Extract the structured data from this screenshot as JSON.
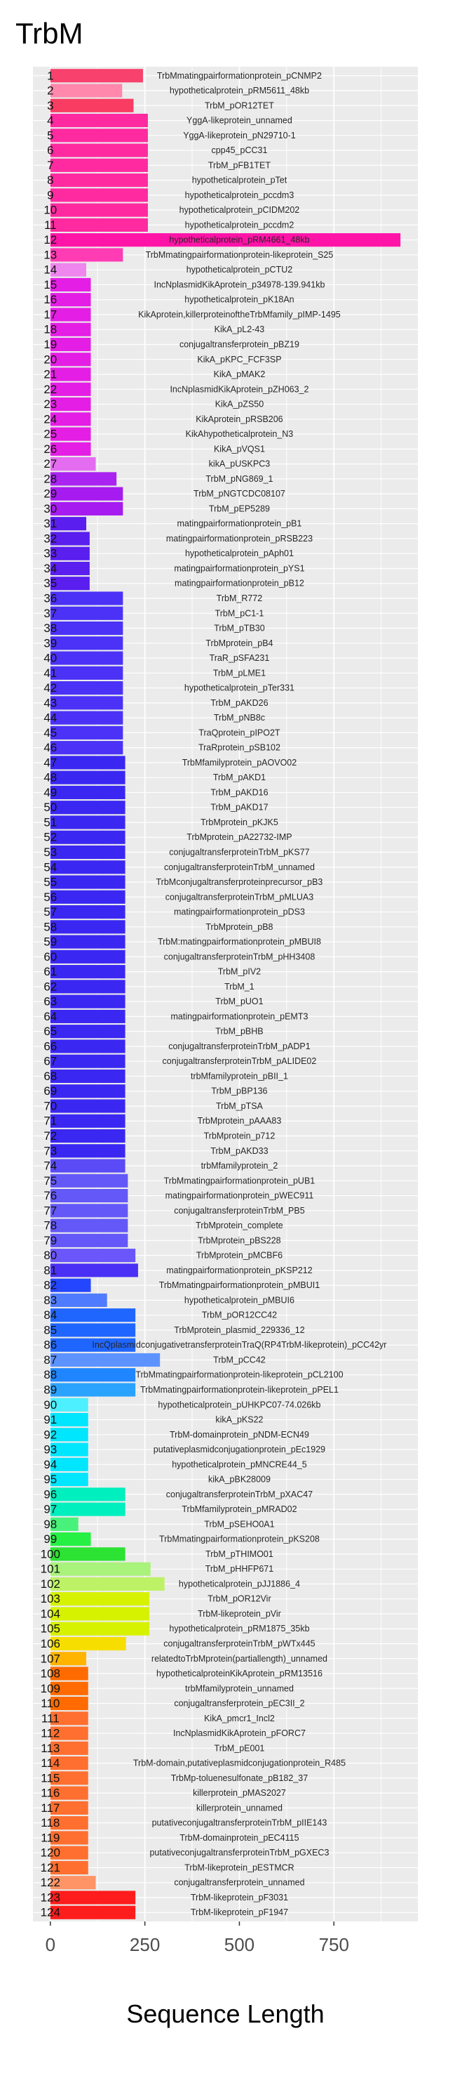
{
  "chart_data": {
    "type": "bar",
    "orientation": "horizontal",
    "title": "TrbM",
    "xlabel": "Sequence Length",
    "xlim": [
      -46,
      972
    ],
    "xticks": [
      0,
      250,
      500,
      750
    ],
    "grid": true,
    "legend": "none",
    "label_position_x": 500,
    "categories": [
      "1",
      "2",
      "3",
      "4",
      "5",
      "6",
      "7",
      "8",
      "9",
      "10",
      "11",
      "12",
      "13",
      "14",
      "15",
      "16",
      "17",
      "18",
      "19",
      "20",
      "21",
      "22",
      "23",
      "24",
      "25",
      "26",
      "27",
      "28",
      "29",
      "30",
      "31",
      "32",
      "33",
      "34",
      "35",
      "36",
      "37",
      "38",
      "39",
      "40",
      "41",
      "42",
      "43",
      "44",
      "45",
      "46",
      "47",
      "48",
      "49",
      "50",
      "51",
      "52",
      "53",
      "54",
      "55",
      "56",
      "57",
      "58",
      "59",
      "60",
      "61",
      "62",
      "63",
      "64",
      "65",
      "66",
      "67",
      "68",
      "69",
      "70",
      "71",
      "72",
      "73",
      "74",
      "75",
      "76",
      "77",
      "78",
      "79",
      "80",
      "81",
      "82",
      "83",
      "84",
      "85",
      "86",
      "87",
      "88",
      "89",
      "90",
      "91",
      "92",
      "93",
      "94",
      "95",
      "96",
      "97",
      "98",
      "99",
      "100",
      "101",
      "102",
      "103",
      "104",
      "105",
      "106",
      "107",
      "108",
      "109",
      "110",
      "111",
      "112",
      "113",
      "114",
      "115",
      "116",
      "117",
      "118",
      "119",
      "120",
      "121",
      "122",
      "123",
      "124"
    ],
    "labels": [
      "TrbMmatingpairformationprotein_pCNMP2",
      "hypotheticalprotein_pRM5611_48kb",
      "TrbM_pOR12TET",
      "YggA-likeprotein_unnamed",
      "YggA-likeprotein_pN29710-1",
      "cpp45_pCC31",
      "TrbM_pFB1TET",
      "hypotheticalprotein_pTet",
      "hypotheticalprotein_pccdm3",
      "hypotheticalprotein_pCIDM202",
      "hypotheticalprotein_pccdm2",
      "hypotheticalprotein_pRM4661_48kb",
      "TrbMmatingpairformationprotein-likeprotein_S25",
      "hypotheticalprotein_pCTU2",
      "IncNplasmidKikAprotein_p34978-139.941kb",
      "hypotheticalprotein_pK18An",
      "KikAprotein,killerproteinoftheTrbMfamily_pIMP-1495",
      "KikA_pL2-43",
      "conjugaltransferprotein_pBZ19",
      "KikA_pKPC_FCF3SP",
      "KikA_pMAK2",
      "IncNplasmidKikAprotein_pZH063_2",
      "KikA_pZS50",
      "KikAprotein_pRSB206",
      "KikAhypotheticalprotein_N3",
      "KikA_pVQS1",
      "kikA_pUSKPC3",
      "TrbM_pNG869_1",
      "TrbM_pNGTCDC08107",
      "TrbM_pEP5289",
      "matingpairformationprotein_pB1",
      "matingpairformationprotein_pRSB223",
      "hypotheticalprotein_pAph01",
      "matingpairformationprotein_pYS1",
      "matingpairformationprotein_pB12",
      "TrbM_R772",
      "TrbM_pC1-1",
      "TrbM_pTB30",
      "TrbMprotein_pB4",
      "TraR_pSFA231",
      "TrbM_pLME1",
      "hypotheticalprotein_pTer331",
      "TrbM_pAKD26",
      "TrbM_pNB8c",
      "TraQprotein_pIPO2T",
      "TraRprotein_pSB102",
      "TrbMfamilyprotein_pAOVO02",
      "TrbM_pAKD1",
      "TrbM_pAKD16",
      "TrbM_pAKD17",
      "TrbMprotein_pKJK5",
      "TrbMprotein_pA22732-IMP",
      "conjugaltransferproteinTrbM_pKS77",
      "conjugaltransferproteinTrbM_unnamed",
      "TrbMconjugaltransferproteinprecursor_pB3",
      "conjugaltransferproteinTrbM_pMLUA3",
      "matingpairformationprotein_pDS3",
      "TrbMprotein_pB8",
      "TrbM:matingpairformationprotein_pMBUI8",
      "conjugaltransferproteinTrbM_pHH3408",
      "TrbM_pIV2",
      "TrbM_1",
      "TrbM_pUO1",
      "matingpairformationprotein_pEMT3",
      "TrbM_pBHB",
      "conjugaltransferproteinTrbM_pADP1",
      "conjugaltransferproteinTrbM_pALIDE02",
      "trbMfamilyprotein_pBII_1",
      "TrbM_pBP136",
      "TrbM_pTSA",
      "TrbMprotein_pAAA83",
      "TrbMprotein_p712",
      "TrbM_pAKD33",
      "trbMfamilyprotein_2",
      "TrbMmatingpairformationprotein_pUB1",
      "matingpairformationprotein_pWEC911",
      "conjugaltransferproteinTrbM_PB5",
      "TrbMprotein_complete",
      "TrbMprotein_pBS228",
      "TrbMprotein_pMCBF6",
      "matingpairformationprotein_pKSP212",
      "TrbMmatingpairformationprotein_pMBUI1",
      "hypotheticalprotein_pMBUI6",
      "TrbM_pOR12CC42",
      "TrbMprotein_plasmid_229336_12",
      "IncQplasmidconjugativetransferproteinTraQ(RP4TrbM-likeprotein)_pCC42yr",
      "TrbM_pCC42",
      "TrbMmatingpairformationprotein-likeprotein_pCL2100",
      "TrbMmatingpairformationprotein-likeprotein_pPEL1",
      "hypotheticalprotein_pUHKPC07-74.026kb",
      "kikA_pKS22",
      "TrbM-domainprotein_pNDM-ECN49",
      "putativeplasmidconjugationprotein_pEc1929",
      "hypotheticalprotein_pMNCRE44_5",
      "kikA_pBK28009",
      "conjugaltransferproteinTrbM_pXAC47",
      "TrbMfamilyprotein_pMRAD02",
      "TrbM_pSEHO0A1",
      "TrbMmatingpairformationprotein_pKS208",
      "TrbM_pTHIMO01",
      "TrbM_pHHFP671",
      "hypotheticalprotein_pJJ1886_4",
      "TrbM_pOR12Vir",
      "TrbM-likeprotein_pVir",
      "hypotheticalprotein_pRM1875_35kb",
      "conjugaltransferproteinTrbM_pWTx445",
      "relatedtoTrbMprotein(partiallength)_unnamed",
      "hypotheticalproteinKikAprotein_pRM13516",
      "trbMfamilyprotein_unnamed",
      "conjugaltransferprotein_pEC3II_2",
      "KikA_pmcr1_Incl2",
      "IncNplasmidKikAprotein_pFORC7",
      "TrbM_pE001",
      "TrbM-domain,putativeplasmidconjugationprotein_R485",
      "TrbMp-toluenesulfonate_pB182_37",
      "killerprotein_pMAS2027",
      "killerprotein_unnamed",
      "putativeconjugaltransferproteinTrbM_pIIE143",
      "TrbM-domainprotein_pEC4115",
      "putativeconjugaltransferproteinTrbM_pGXEC3",
      "TrbM-likeprotein_pESTMCR",
      "conjugaltransferprotein_unnamed",
      "TrbM-likeprotein_pF3031",
      "TrbM-likeprotein_pF1947"
    ],
    "values": [
      245,
      190,
      220,
      258,
      258,
      258,
      258,
      258,
      258,
      258,
      258,
      926,
      192,
      95,
      107,
      107,
      107,
      107,
      107,
      107,
      107,
      107,
      107,
      107,
      107,
      107,
      120,
      175,
      192,
      192,
      95,
      104,
      104,
      104,
      104,
      192,
      192,
      192,
      192,
      192,
      192,
      192,
      192,
      192,
      192,
      192,
      198,
      198,
      198,
      198,
      198,
      198,
      198,
      198,
      198,
      198,
      198,
      198,
      198,
      198,
      198,
      198,
      198,
      198,
      198,
      198,
      198,
      198,
      198,
      198,
      198,
      198,
      198,
      198,
      205,
      205,
      205,
      205,
      205,
      225,
      232,
      107,
      150,
      225,
      225,
      225,
      290,
      225,
      225,
      100,
      100,
      100,
      100,
      100,
      100,
      198,
      198,
      74,
      107,
      198,
      265,
      302,
      262,
      262,
      262,
      200,
      95,
      100,
      100,
      100,
      100,
      100,
      100,
      100,
      100,
      100,
      100,
      100,
      100,
      100,
      100,
      120,
      225,
      225
    ],
    "colors": [
      "#F8416C",
      "#FF88AC",
      "#F83C62",
      "#FF2AA0",
      "#FF2AA0",
      "#FF2AA0",
      "#FF2AA0",
      "#FF2AA0",
      "#FF2AA0",
      "#FF2AA0",
      "#FF2AA0",
      "#FF14A8",
      "#FF3CB4",
      "#EE86EE",
      "#E41EE4",
      "#E41EE4",
      "#E41EE4",
      "#E41EE4",
      "#E41EE4",
      "#E41EE4",
      "#E41EE4",
      "#E41EE4",
      "#E41EE4",
      "#E41EE4",
      "#E41EE4",
      "#E41EE4",
      "#E46CF0",
      "#A924F0",
      "#A61BEF",
      "#A61BEF",
      "#5A1EEE",
      "#5A1EEE",
      "#5A1EEE",
      "#5A1EEE",
      "#5A1EEE",
      "#4B32F6",
      "#4B32F6",
      "#4B32F6",
      "#4B32F6",
      "#4B32F6",
      "#4B32F6",
      "#4B32F6",
      "#4B32F6",
      "#4B32F6",
      "#4B32F6",
      "#4B32F6",
      "#3B27F2",
      "#3B27F2",
      "#3B27F2",
      "#3B27F2",
      "#3B27F2",
      "#3B27F2",
      "#3B27F2",
      "#3B27F2",
      "#3B27F2",
      "#3B27F2",
      "#3B27F2",
      "#3B27F2",
      "#3B27F2",
      "#3B27F2",
      "#3B27F2",
      "#3B27F2",
      "#3B27F2",
      "#3B27F2",
      "#3B27F2",
      "#3B27F2",
      "#3B27F2",
      "#3B27F2",
      "#3B27F2",
      "#3B27F2",
      "#3B27F2",
      "#3B27F2",
      "#3B27F2",
      "#5A4BF7",
      "#6458F8",
      "#6458F8",
      "#6458F8",
      "#6458F8",
      "#6458F8",
      "#6A56FA",
      "#4A30F4",
      "#2446FF",
      "#4F7BFF",
      "#1F66FF",
      "#1F66FF",
      "#1F66FF",
      "#5D93FF",
      "#1F86FF",
      "#2AA3FF",
      "#4CF0FF",
      "#00E6FF",
      "#00E6FF",
      "#00E6FF",
      "#00E6FF",
      "#00E6FF",
      "#00EFBE",
      "#00EFBE",
      "#48F27A",
      "#26F044",
      "#2CE232",
      "#A9F27C",
      "#BDF266",
      "#D6F200",
      "#D6F200",
      "#D6F200",
      "#F6DF00",
      "#FFB400",
      "#FF6B00",
      "#FF6B00",
      "#FF6B00",
      "#FF6F30",
      "#FF6F30",
      "#FF6F30",
      "#FF6F30",
      "#FF6F30",
      "#FF6F30",
      "#FF6F30",
      "#FF6F30",
      "#FF6F30",
      "#FF6F30",
      "#FF6F30",
      "#FF9466",
      "#FF1C1C",
      "#FF1C1C"
    ]
  },
  "theme": {
    "panel_background": "#EBEBEB",
    "grid_color": "#FFFFFF"
  }
}
